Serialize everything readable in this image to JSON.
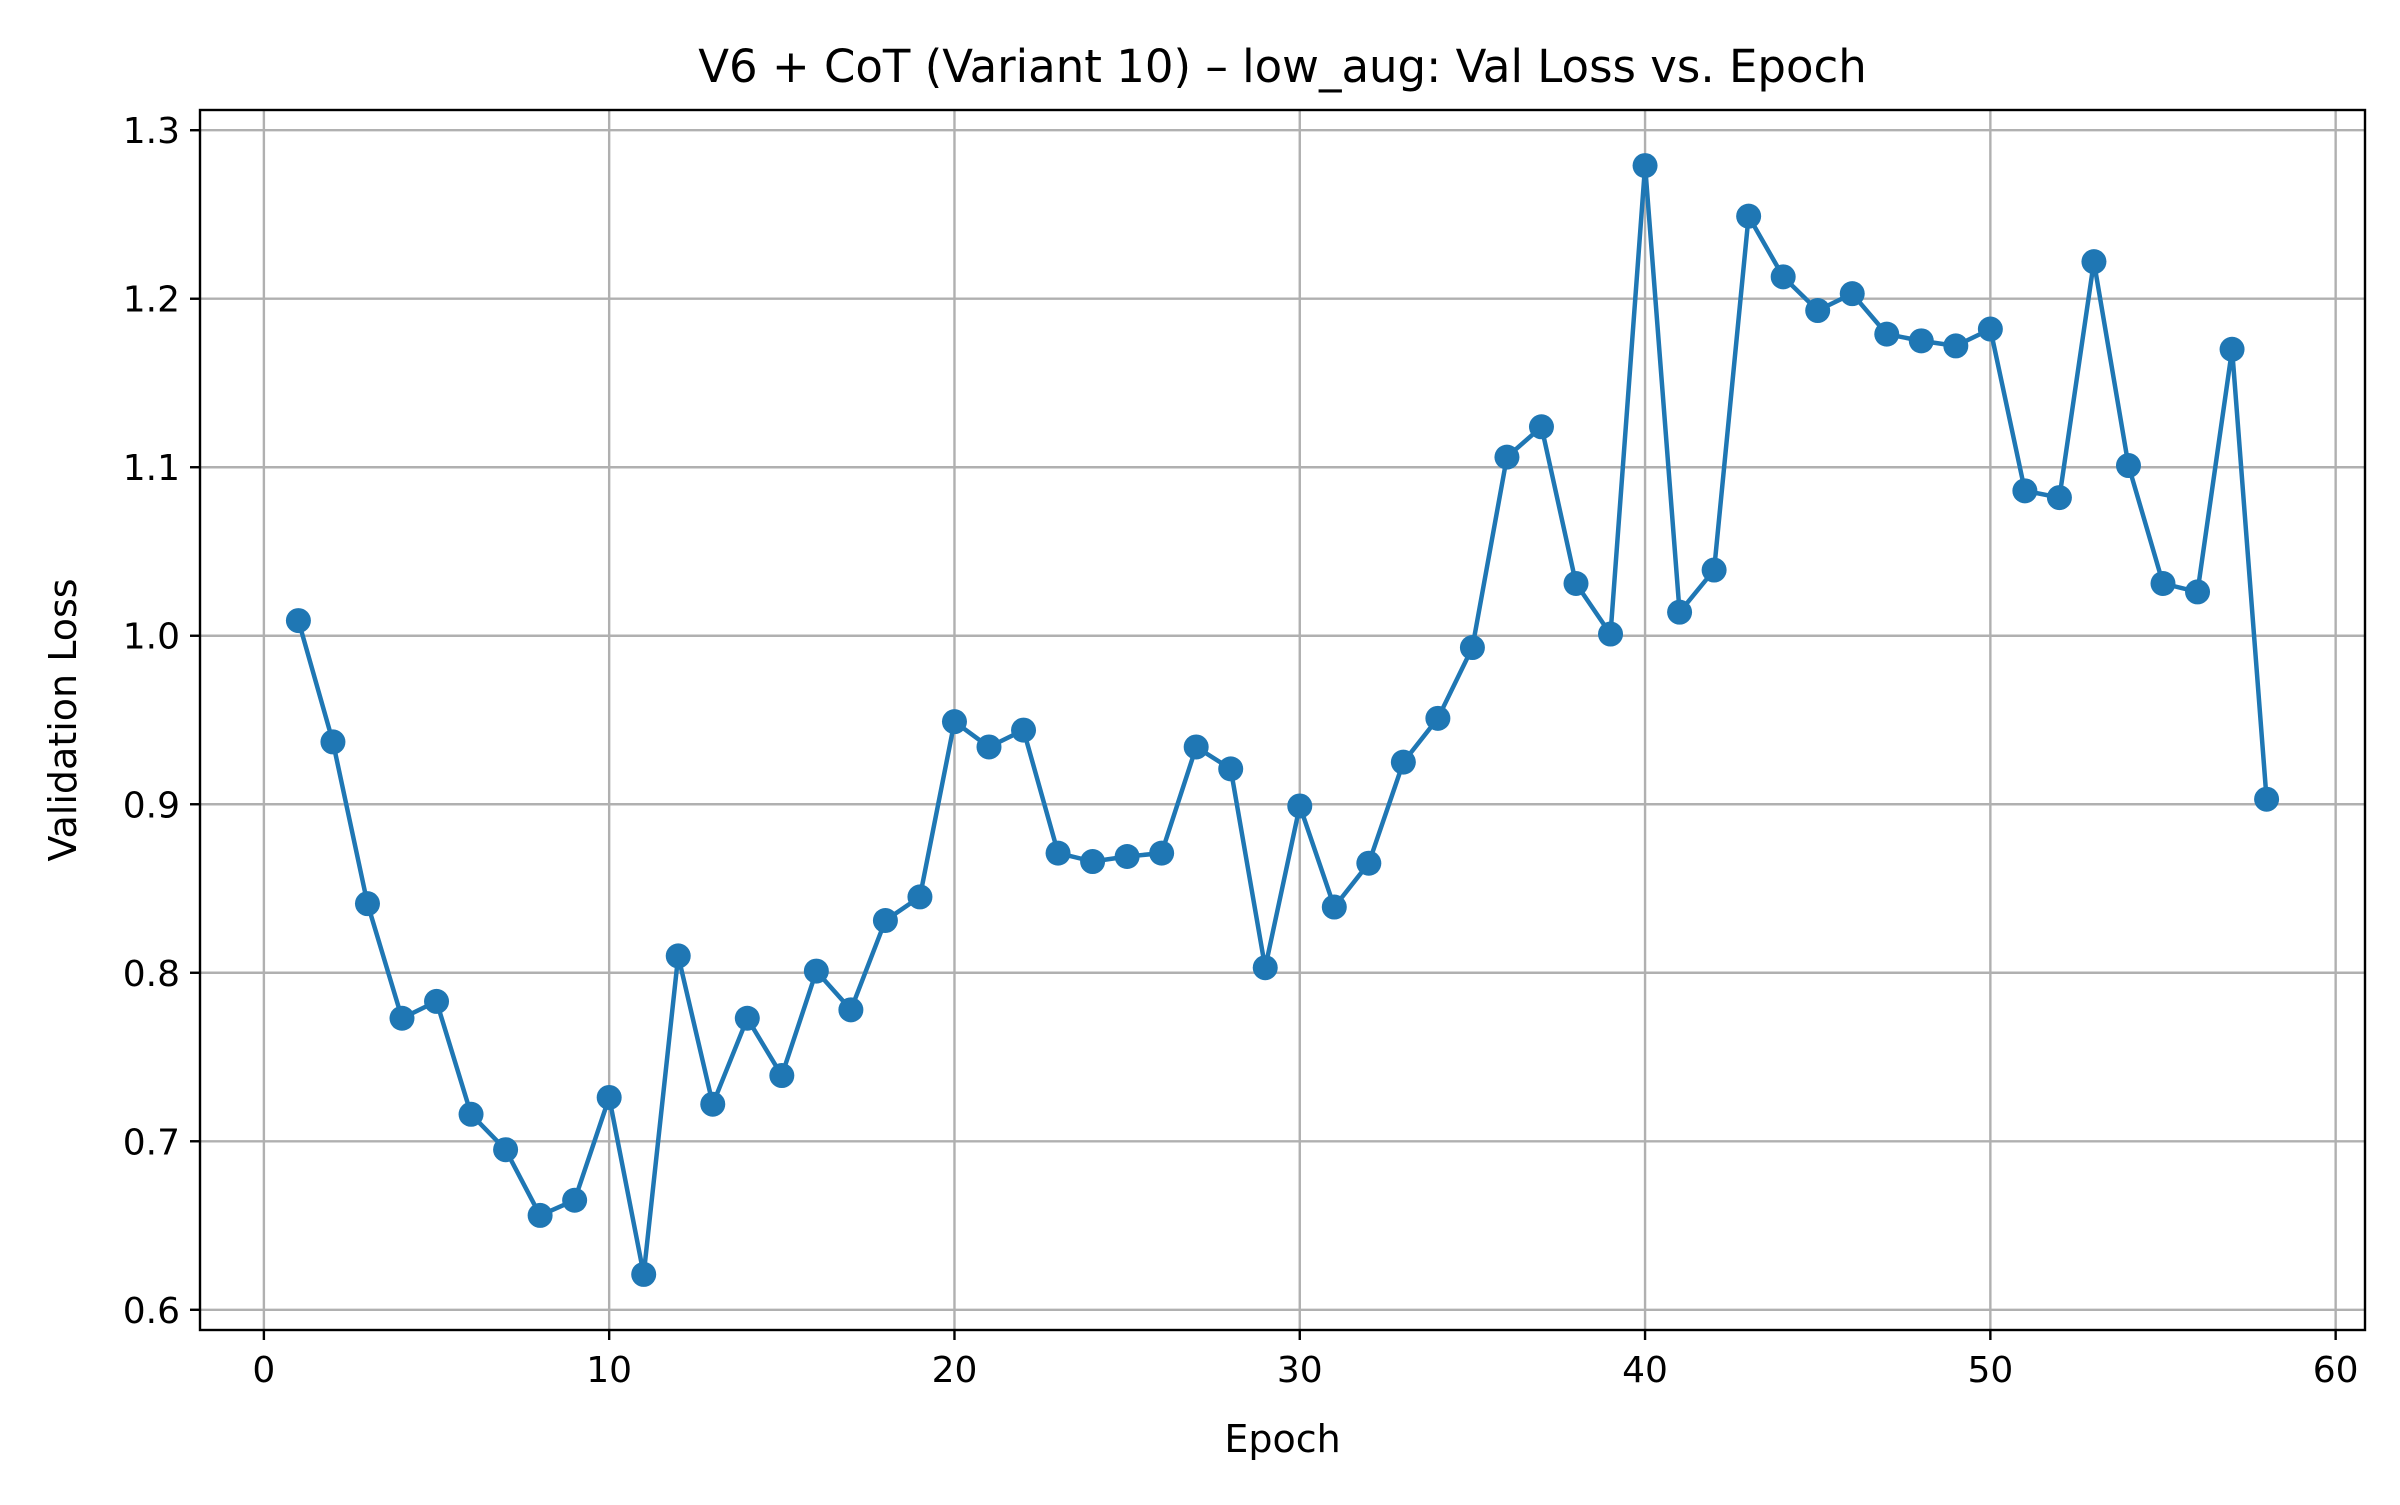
{
  "chart_data": {
    "type": "line",
    "title": "V6 + CoT (Variant 10) – low_aug: Val Loss vs. Epoch",
    "xlabel": "Epoch",
    "ylabel": "Validation Loss",
    "xlim": [
      -1.85,
      60.85
    ],
    "ylim": [
      0.588,
      1.312
    ],
    "xticks": [
      0,
      10,
      20,
      30,
      40,
      50,
      60
    ],
    "yticks": [
      0.6,
      0.7,
      0.8,
      0.9,
      1.0,
      1.1,
      1.2,
      1.3
    ],
    "ytick_labels": [
      "0.6",
      "0.7",
      "0.8",
      "0.9",
      "1.0",
      "1.1",
      "1.2",
      "1.3"
    ],
    "grid": true,
    "marker": "circle",
    "color": "#1f77b4",
    "series": [
      {
        "x": [
          1,
          2,
          3,
          4,
          5,
          6,
          7,
          8,
          9,
          10,
          11,
          12,
          13,
          14,
          15,
          16,
          17,
          18,
          19,
          20,
          21,
          22,
          23,
          24,
          25,
          26,
          27,
          28,
          29,
          30,
          31,
          32,
          33,
          34,
          35,
          36,
          37,
          38,
          39,
          40,
          41,
          42,
          43,
          44,
          45,
          46,
          47,
          48,
          49,
          50,
          51,
          52,
          53,
          54,
          55,
          56,
          57,
          58
        ],
        "values": [
          1.009,
          0.937,
          0.841,
          0.773,
          0.783,
          0.716,
          0.695,
          0.656,
          0.665,
          0.726,
          0.621,
          0.81,
          0.722,
          0.773,
          0.739,
          0.801,
          0.778,
          0.831,
          0.845,
          0.949,
          0.934,
          0.944,
          0.871,
          0.866,
          0.869,
          0.871,
          0.934,
          0.921,
          0.803,
          0.899,
          0.839,
          0.865,
          0.925,
          0.951,
          0.993,
          1.106,
          1.124,
          1.031,
          1.001,
          1.279,
          1.014,
          1.039,
          1.249,
          1.213,
          1.193,
          1.203,
          1.179,
          1.175,
          1.172,
          1.182,
          1.086,
          1.082,
          1.222,
          1.101,
          1.031,
          1.026,
          1.17,
          0.903
        ]
      }
    ]
  }
}
